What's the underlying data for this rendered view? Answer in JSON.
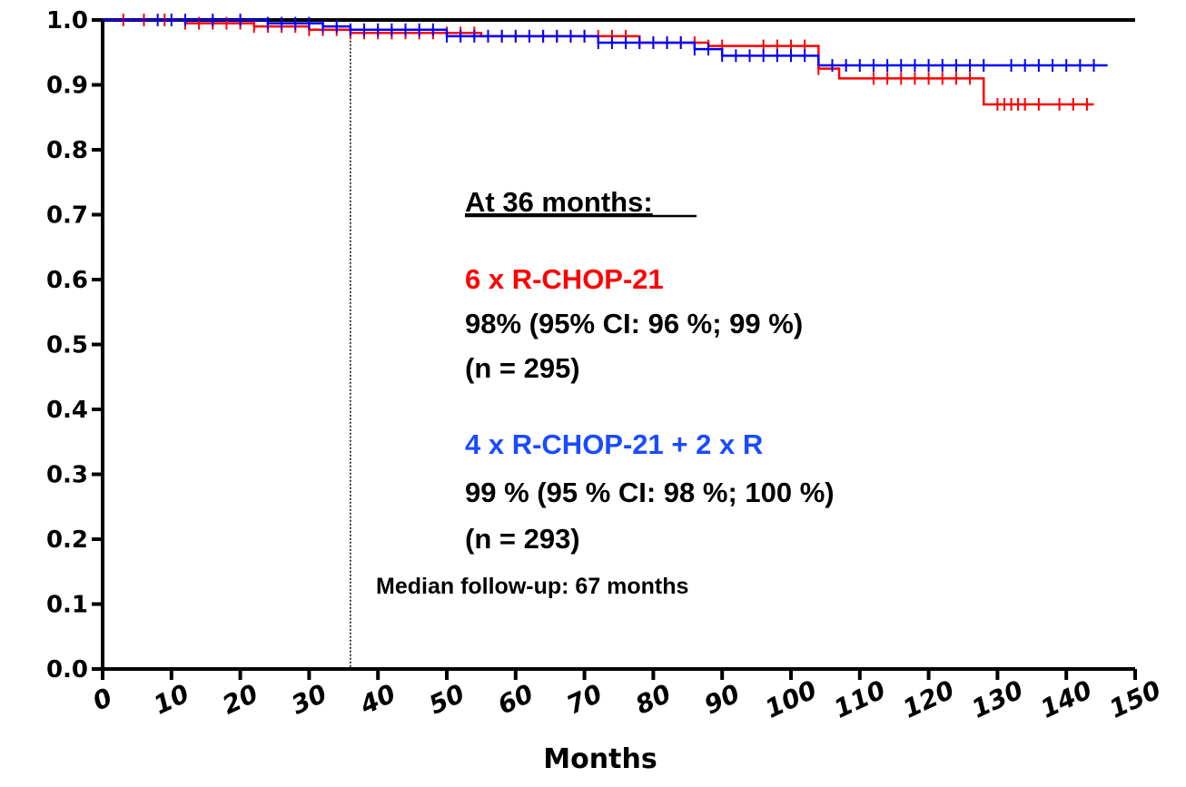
{
  "chart_data": {
    "type": "line",
    "subtype": "kaplan-meier",
    "xlabel": "Months",
    "ylabel": "",
    "xlim": [
      0,
      150
    ],
    "ylim": [
      0.0,
      1.0
    ],
    "x_ticks": [
      0,
      10,
      20,
      30,
      40,
      50,
      60,
      70,
      80,
      90,
      100,
      110,
      120,
      130,
      140,
      150
    ],
    "y_ticks": [
      "0.0",
      "0.1",
      "0.2",
      "0.3",
      "0.4",
      "0.5",
      "0.6",
      "0.7",
      "0.8",
      "0.9",
      "1.0"
    ],
    "grid": false,
    "reference_line": {
      "x": 36,
      "style": "dotted"
    },
    "series": [
      {
        "name": "6 x R-CHOP-21",
        "color": "#ff0000",
        "steps": [
          [
            0,
            1.0
          ],
          [
            12,
            0.995
          ],
          [
            22,
            0.99
          ],
          [
            30,
            0.985
          ],
          [
            36,
            0.98
          ],
          [
            55,
            0.975
          ],
          [
            78,
            0.965
          ],
          [
            88,
            0.96
          ],
          [
            104,
            0.925
          ],
          [
            107,
            0.91
          ],
          [
            128,
            0.87
          ],
          [
            144,
            0.87
          ]
        ],
        "censor_x": [
          3,
          6,
          9,
          12,
          14,
          16,
          18,
          20,
          22,
          24,
          26,
          28,
          30,
          32,
          34,
          36,
          38,
          40,
          42,
          44,
          46,
          48,
          50,
          52,
          54,
          56,
          58,
          60,
          62,
          64,
          66,
          68,
          70,
          72,
          74,
          76,
          78,
          80,
          82,
          84,
          86,
          88,
          90,
          96,
          98,
          100,
          102,
          104,
          112,
          114,
          116,
          118,
          120,
          122,
          124,
          126,
          130,
          131,
          132,
          133,
          134,
          136,
          139,
          141,
          143
        ]
      },
      {
        "name": "4 x R-CHOP-21 + 2 x R",
        "color": "#0000ff",
        "steps": [
          [
            0,
            1.0
          ],
          [
            24,
            0.995
          ],
          [
            32,
            0.99
          ],
          [
            36,
            0.985
          ],
          [
            50,
            0.975
          ],
          [
            72,
            0.965
          ],
          [
            86,
            0.955
          ],
          [
            90,
            0.945
          ],
          [
            104,
            0.93
          ],
          [
            146,
            0.93
          ]
        ],
        "censor_x": [
          8,
          10,
          12,
          16,
          20,
          24,
          26,
          28,
          30,
          32,
          34,
          36,
          38,
          40,
          42,
          44,
          46,
          48,
          50,
          52,
          54,
          56,
          58,
          60,
          62,
          64,
          66,
          68,
          70,
          72,
          74,
          76,
          78,
          80,
          82,
          84,
          86,
          88,
          90,
          92,
          94,
          96,
          98,
          100,
          102,
          106,
          108,
          110,
          112,
          114,
          116,
          118,
          120,
          122,
          124,
          126,
          128,
          132,
          134,
          136,
          138,
          140,
          142,
          144
        ]
      }
    ],
    "annotations": {
      "heading": "At 36 months:",
      "group1_name": "6 x R-CHOP-21",
      "group1_value": "98% (95% CI: 96 %; 99 %)",
      "group1_n": "(n = 295)",
      "group2_name": "4 x R-CHOP-21 + 2 x R",
      "group2_value": "99 % (95 % CI: 98 %; 100 %)",
      "group2_n": "(n = 293)",
      "footnote": "Median follow-up: 67 months"
    }
  }
}
